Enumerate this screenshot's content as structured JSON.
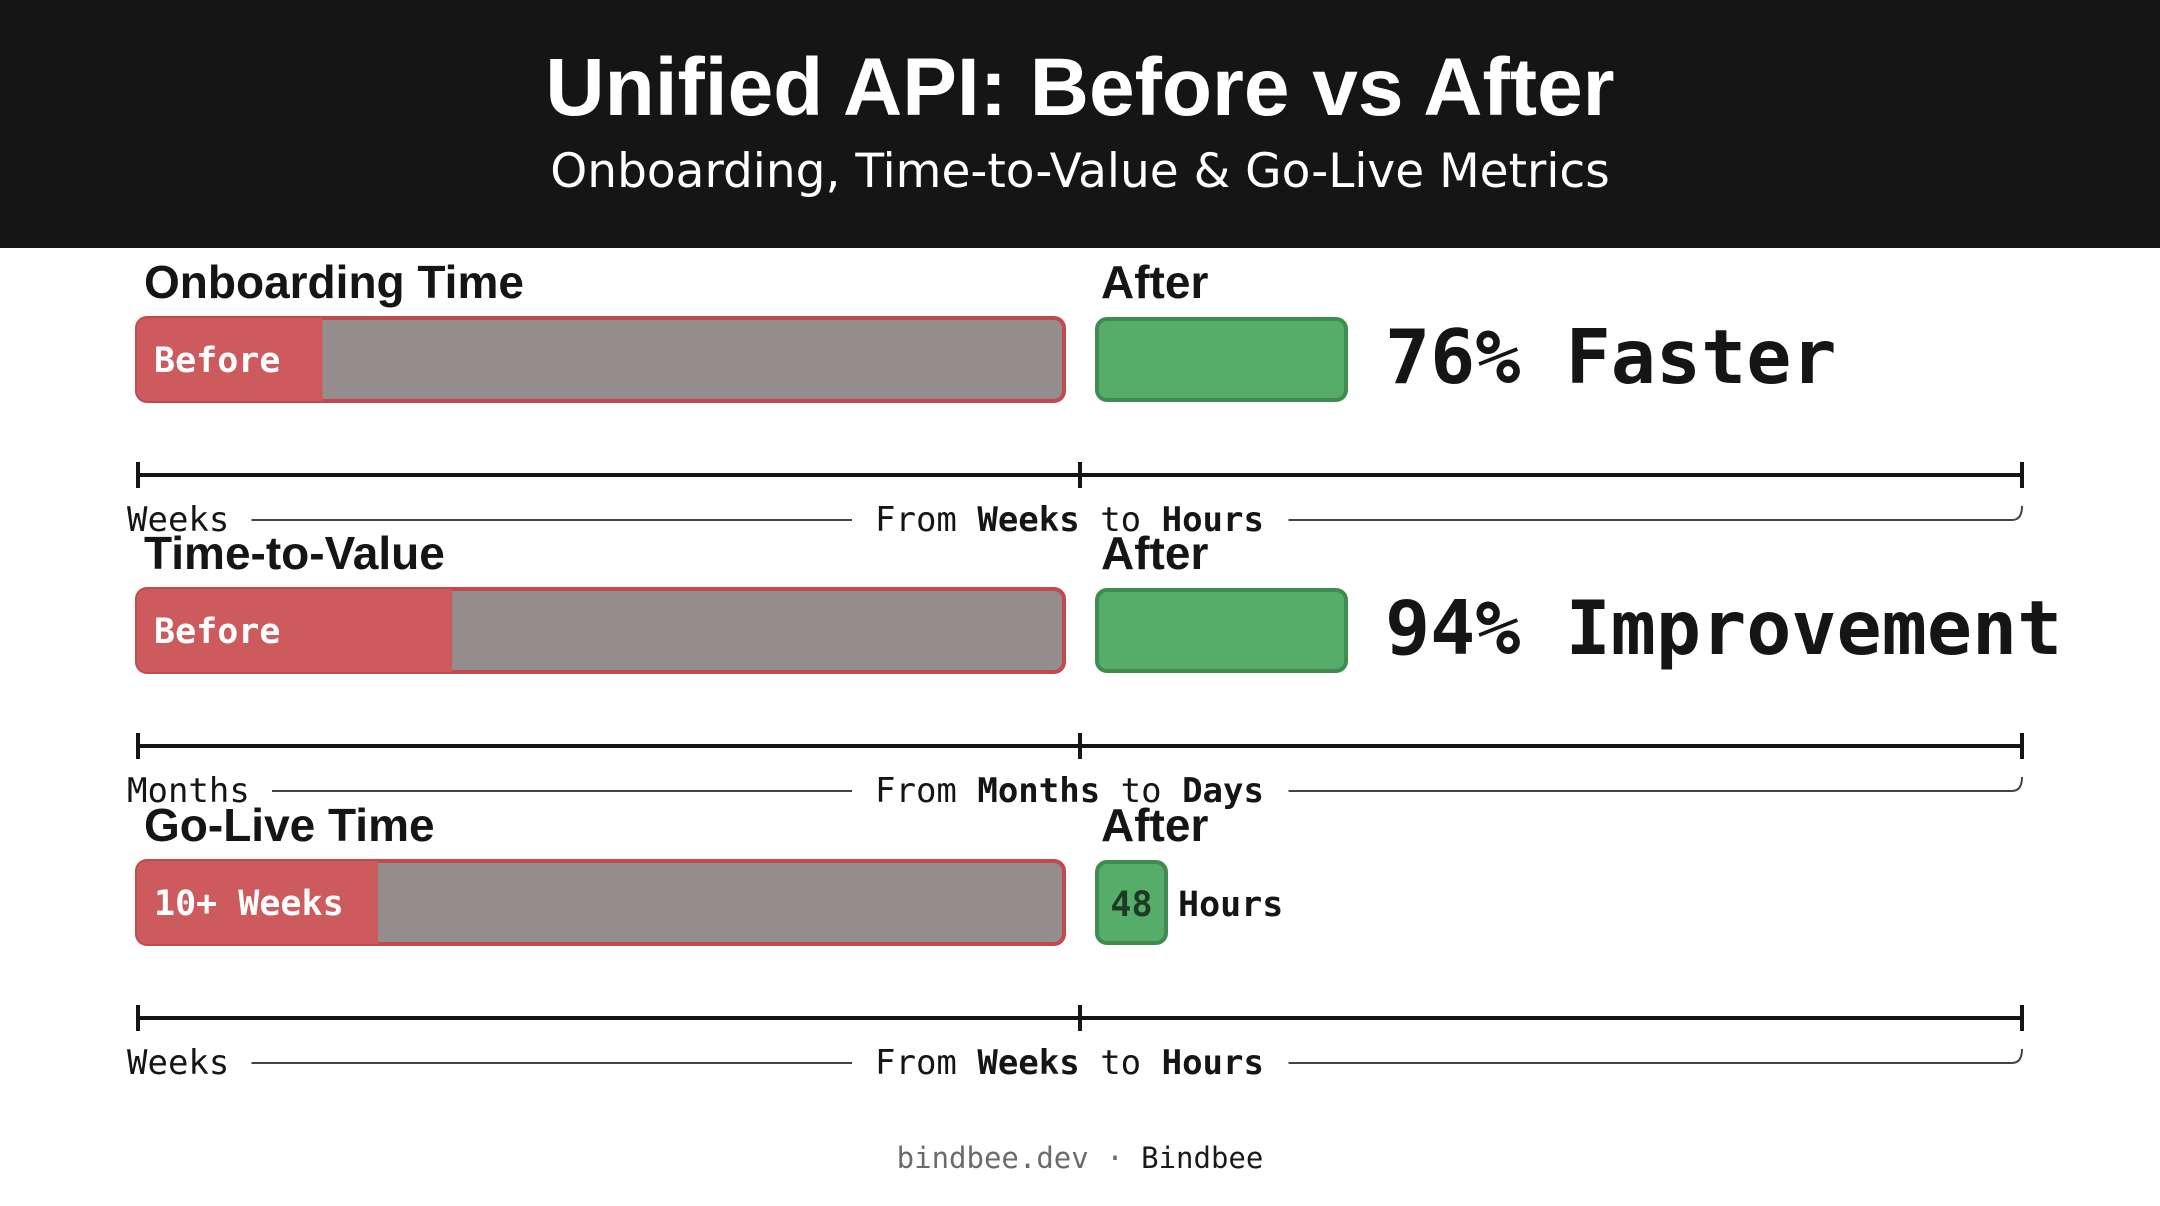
{
  "title": "Unified API: Before vs After",
  "subtitle": "Onboarding, Time-to-Value & Go-Live Metrics",
  "footer": {
    "site": "bindbee.dev",
    "separator": "·",
    "brand": "Bindbee"
  },
  "colors": {
    "header_bg": "#151515",
    "before_red": "#cd5a5c",
    "before_red_border": "#c04a4d",
    "gray_track": "#958c8d",
    "after_green": "#56ad6a",
    "after_green_border": "#3f8b52",
    "text_dark": "#151515"
  },
  "chart_data": [
    {
      "type": "bar",
      "title": "Onboarding Time",
      "after_label": "After",
      "before_label": "Before",
      "before_fill_fraction": 0.2,
      "after_value_text": "",
      "after_unit": "",
      "callout": "76% Faster",
      "axis": {
        "start_label": "Weeks",
        "from": "From",
        "from_unit": "Weeks",
        "to": "to",
        "to_unit": "Hours"
      }
    },
    {
      "type": "bar",
      "title": "Time-to-Value",
      "after_label": "After",
      "before_label": "Before",
      "before_fill_fraction": 0.34,
      "after_value_text": "",
      "after_unit": "",
      "callout": "94% Improvement",
      "axis": {
        "start_label": "Months",
        "from": "From",
        "from_unit": "Months",
        "to": "to",
        "to_unit": "Days"
      }
    },
    {
      "type": "bar",
      "title": "Go-Live Time",
      "after_label": "After",
      "before_label": "10+ Weeks",
      "before_fill_fraction": 0.26,
      "after_value_text": "48",
      "after_unit": "Hours",
      "callout": "",
      "axis": {
        "start_label": "Weeks",
        "from": "From",
        "from_unit": "Weeks",
        "to": "to",
        "to_unit": "Hours"
      }
    }
  ]
}
